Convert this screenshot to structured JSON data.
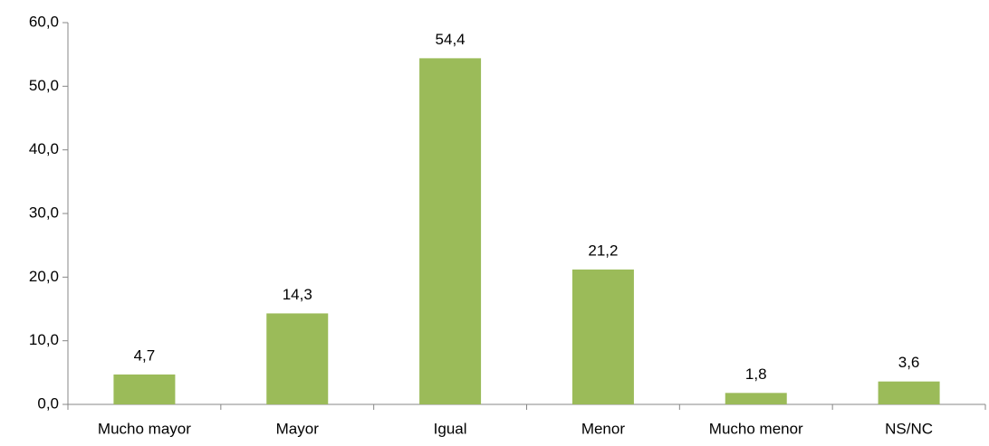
{
  "chart_data": {
    "type": "bar",
    "categories": [
      "Mucho mayor",
      "Mayor",
      "Igual",
      "Menor",
      "Mucho menor",
      "NS/NC"
    ],
    "values": [
      4.7,
      14.3,
      54.4,
      21.2,
      1.8,
      3.6
    ],
    "value_labels": [
      "4,7",
      "14,3",
      "54,4",
      "21,2",
      "1,8",
      "3,6"
    ],
    "color": "#9bbb59",
    "ylim": [
      0,
      60
    ],
    "yticks": [
      {
        "value": 0,
        "label": "0,0"
      },
      {
        "value": 10,
        "label": "10,0"
      },
      {
        "value": 20,
        "label": "20,0"
      },
      {
        "value": 30,
        "label": "30,0"
      },
      {
        "value": 40,
        "label": "40,0"
      },
      {
        "value": 50,
        "label": "50,0"
      },
      {
        "value": 60,
        "label": "60,0"
      }
    ],
    "grid": false
  }
}
